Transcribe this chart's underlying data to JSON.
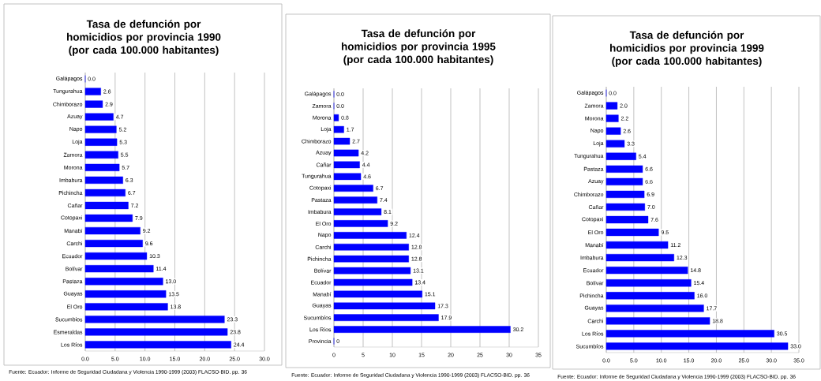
{
  "chart_data": [
    {
      "type": "bar",
      "orientation": "horizontal",
      "title": "Tasa de defunción por homicidios por provincia 1990 (por cada 100.000 habitantes)",
      "categories": [
        "Galápagos",
        "Tungurahua",
        "Chimborazo",
        "Azuay",
        "Napo",
        "Loja",
        "Zamora",
        "Morona",
        "Imbabura",
        "Pichincha",
        "Cañar",
        "Cotopaxi",
        "Manabí",
        "Carchi",
        "Ecuador",
        "Bolívar",
        "Pastaza",
        "Guayas",
        "El Oro",
        "Sucumbios",
        "Esmeraldas",
        "Los Ríos"
      ],
      "values": [
        0.0,
        2.6,
        2.9,
        4.7,
        5.2,
        5.3,
        5.5,
        5.7,
        6.3,
        6.7,
        7.2,
        7.9,
        9.2,
        9.6,
        10.3,
        11.4,
        13.0,
        13.5,
        13.8,
        23.3,
        23.8,
        24.4
      ],
      "value_labels": [
        "0.0",
        "2.6",
        "2.9",
        "4.7",
        "5.2",
        "5.3",
        "5.5",
        "5.7",
        "6.3",
        "6.7",
        "7.2",
        "7.9",
        "9.2",
        "9.6",
        "10.3",
        "11.4",
        "13.0",
        "13.5",
        "13.8",
        "23.3",
        "23.8",
        "24.4"
      ],
      "color": "#0000ff",
      "xlim": [
        0,
        30
      ],
      "xticks": [
        {
          "value": 0,
          "label": "0.0"
        },
        {
          "value": 5,
          "label": "5.0"
        },
        {
          "value": 10,
          "label": "10.0"
        },
        {
          "value": 15,
          "label": "15.0"
        },
        {
          "value": 20,
          "label": "20.0"
        },
        {
          "value": 25,
          "label": "25.0"
        },
        {
          "value": 30,
          "label": "30.0"
        }
      ],
      "grid": "x",
      "annotations": [
        "Fuente: Ecuador: Informe de Seguridad Ciudadana y Violencia 1990-1999 (2003) FLACSO-BID. pp. 36"
      ]
    },
    {
      "type": "bar",
      "orientation": "horizontal",
      "title": "Tasa de defunción por homicidios por provincia 1995 (por cada 100.000 habitantes)",
      "categories": [
        "Galápagos",
        "Zamora",
        "Morona",
        "Loja",
        "Chimborazo",
        "Azuay",
        "Cañar",
        "Tungurahua",
        "Cotopaxi",
        "Pastaza",
        "Imbabura",
        "El Oro",
        "Napo",
        "Carchi",
        "Pichincha",
        "Bolívar",
        "Ecuador",
        "Manabí",
        "Guayas",
        "Sucumbíos",
        "Los Ríos",
        "Provincia"
      ],
      "values": [
        0.0,
        0.0,
        0.8,
        1.7,
        2.7,
        4.2,
        4.4,
        4.6,
        6.7,
        7.4,
        8.1,
        9.2,
        12.4,
        12.8,
        12.8,
        13.1,
        13.4,
        15.1,
        17.3,
        17.9,
        30.2,
        0
      ],
      "value_labels": [
        "0.0",
        "0.0",
        "0.8",
        "1.7",
        "2.7",
        "4.2",
        "4.4",
        "4.6",
        "6.7",
        "7.4",
        "8.1",
        "9.2",
        "12.4",
        "12.8",
        "12.8",
        "13.1",
        "13.4",
        "15.1",
        "17.3",
        "17.9",
        "30.2",
        "0"
      ],
      "color": "#0000ff",
      "xlim": [
        0,
        35
      ],
      "xticks": [
        0,
        5,
        10,
        15,
        20,
        25,
        30,
        35
      ],
      "grid": "x",
      "annotations": [
        "Fuente: Ecuador: Informe de Seguridad Ciudadana y Violencia 1990-1999 (2003) FLACSO-BID. pp. 36"
      ]
    },
    {
      "type": "bar",
      "orientation": "horizontal",
      "title": "Tasa de defunción por homicidios por provincia 1999 (por cada 100.000 habitantes)",
      "categories": [
        "Galápagos",
        "Zamora",
        "Morona",
        "Napo",
        "Loja",
        "Tungurahua",
        "Pastaza",
        "Azuay",
        "Chimborazo",
        "Cañar",
        "Cotopaxi",
        "El Oro",
        "Manabí",
        "Imbabura",
        "Ecuador",
        "Bolívar",
        "Pichincha",
        "Guayas",
        "Carchi",
        "Los Ríos",
        "Sucumbíos"
      ],
      "values": [
        0.0,
        2.0,
        2.2,
        2.6,
        3.3,
        5.4,
        6.6,
        6.6,
        6.9,
        7.0,
        7.6,
        9.5,
        11.2,
        12.3,
        14.8,
        15.4,
        16.0,
        17.7,
        18.8,
        30.5,
        33.0
      ],
      "value_labels": [
        "0.0",
        "2.0",
        "2.2",
        "2.6",
        "3.3",
        "5.4",
        "6.6",
        "6.6",
        "6.9",
        "7.0",
        "7.6",
        "9.5",
        "11.2",
        "12.3",
        "14.8",
        "15.4",
        "16.0",
        "17.7",
        "18.8",
        "30.5",
        "33.0"
      ],
      "color": "#0000ff",
      "xlim": [
        0,
        35
      ],
      "xticks": [
        {
          "value": 0,
          "label": "0.0"
        },
        {
          "value": 5,
          "label": "5.0"
        },
        {
          "value": 10,
          "label": "10.0"
        },
        {
          "value": 15,
          "label": "15.0"
        },
        {
          "value": 20,
          "label": "20.0"
        },
        {
          "value": 25,
          "label": "25.0"
        },
        {
          "value": 30,
          "label": "30.0"
        },
        {
          "value": 35,
          "label": "35.0"
        }
      ],
      "grid": "x",
      "annotations": [
        "Fuente: Ecuador: Informe de Seguridad Ciudadana y Violencia 1990-1999 (2003) FLACSO-BID. pp. 36"
      ]
    }
  ]
}
